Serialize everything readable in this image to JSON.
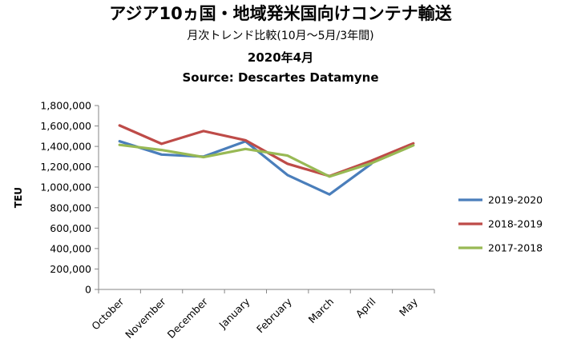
{
  "chart_data": {
    "type": "line",
    "title": "アジア10ヵ国・地域発米国向けコンテナ輸送",
    "subtitle": "月次トレンド比較(10月～5月/3年間)",
    "period": "2020年4月",
    "source": "Source: Descartes Datamyne",
    "ylabel": "TEU",
    "xlabel": "",
    "ylim": [
      0,
      1800000
    ],
    "yticks": [
      0,
      200000,
      400000,
      600000,
      800000,
      1000000,
      1200000,
      1400000,
      1600000,
      1800000
    ],
    "ytick_labels": [
      "0",
      "200,000",
      "400,000",
      "600,000",
      "800,000",
      "1,000,000",
      "1,200,000",
      "1,400,000",
      "1,600,000",
      "1,800,000"
    ],
    "categories": [
      "October",
      "November",
      "December",
      "January",
      "February",
      "March",
      "April",
      "May"
    ],
    "grid": false,
    "legend_position": "right",
    "series": [
      {
        "name": "2019-2020",
        "color": "#4a7ebb",
        "values": [
          1450000,
          1320000,
          1300000,
          1450000,
          1120000,
          930000,
          1230000,
          null
        ]
      },
      {
        "name": "2018-2019",
        "color": "#be4b48",
        "values": [
          1605000,
          1425000,
          1550000,
          1460000,
          1230000,
          1110000,
          1260000,
          1430000
        ]
      },
      {
        "name": "2017-2018",
        "color": "#98b954",
        "values": [
          1415000,
          1365000,
          1295000,
          1375000,
          1310000,
          1105000,
          1235000,
          1410000
        ]
      }
    ]
  }
}
